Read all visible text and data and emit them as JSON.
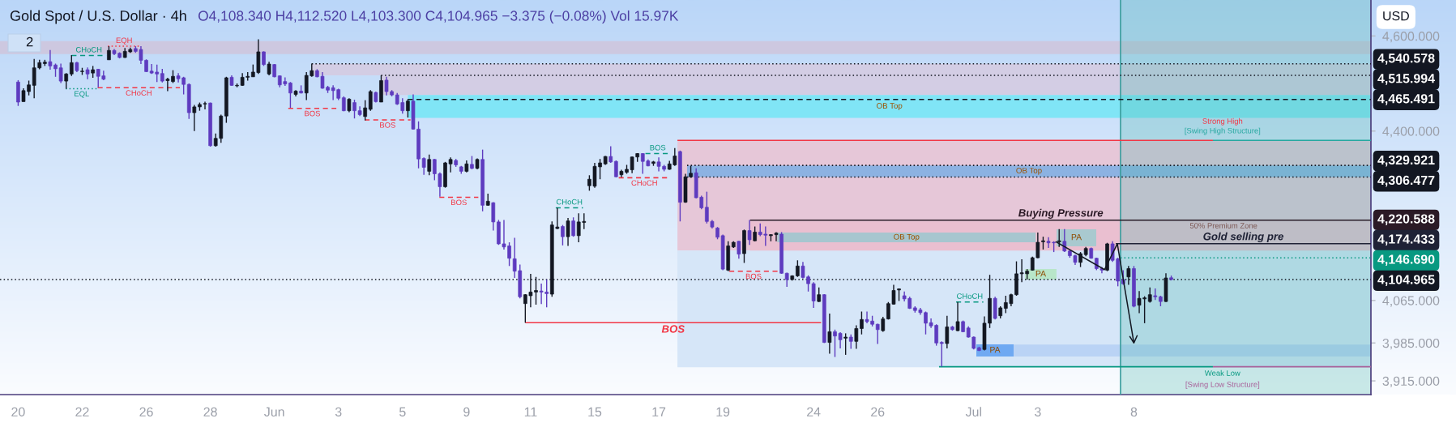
{
  "chart_data": {
    "type": "candlestick",
    "title": "Gold Spot / U.S. Dollar · 4h",
    "subtitle": "O4,108.340 H4,112.520 L4,103.300 C4,104.965 −3.375 (−0.08%) Vol 15.97K",
    "ylabel": "USD",
    "log": true,
    "ylim": [
      3890,
      4678
    ],
    "yticks": [
      {
        "value": 4600,
        "label": "4,600.000"
      },
      {
        "value": 4400,
        "label": "4,400.000"
      },
      {
        "value": 4065,
        "label": "4,065.000"
      },
      {
        "value": 3985,
        "label": "3,985.000"
      },
      {
        "value": 3915,
        "label": "3,915.000"
      }
    ],
    "categories": [
      "20",
      null,
      null,
      null,
      null,
      null,
      null,
      null,
      null,
      null,
      null,
      null,
      "22",
      null,
      null,
      null,
      null,
      null,
      null,
      null,
      null,
      null,
      null,
      null,
      "26",
      null,
      null,
      null,
      null,
      null,
      null,
      null,
      null,
      null,
      null,
      null,
      "28",
      null,
      null,
      null,
      null,
      null,
      null,
      null,
      null,
      null,
      null,
      null,
      "Jun",
      null,
      null,
      null,
      null,
      null,
      null,
      null,
      null,
      null,
      null,
      null,
      "3",
      null,
      null,
      null,
      null,
      null,
      null,
      null,
      null,
      null,
      null,
      null,
      "5",
      null,
      null,
      null,
      null,
      null,
      null,
      null,
      null,
      null,
      null,
      null,
      "9",
      null,
      null,
      null,
      null,
      null,
      null,
      null,
      null,
      null,
      null,
      null,
      "11",
      null,
      null,
      null,
      null,
      null,
      null,
      null,
      null,
      null,
      null,
      null,
      "15",
      null,
      null,
      null,
      null,
      null,
      null,
      null,
      null,
      null,
      null,
      null,
      "17",
      null,
      null,
      null,
      null,
      null,
      null,
      null,
      null,
      null,
      null,
      null,
      "19",
      null,
      null,
      null,
      null,
      null,
      null,
      null,
      null,
      null,
      null,
      null,
      null,
      null,
      null,
      null,
      null,
      "24",
      null,
      null,
      null,
      null,
      null,
      null,
      null,
      null,
      null,
      null,
      null,
      "26",
      null,
      null,
      null,
      null,
      null,
      null,
      null,
      null,
      null,
      null,
      null,
      null,
      null,
      null,
      null,
      null,
      null,
      "Jul",
      null,
      null,
      null,
      null,
      null,
      null,
      null,
      null,
      null,
      null,
      null,
      "3",
      null,
      null,
      null,
      null,
      null,
      null,
      null,
      null,
      null,
      null,
      null,
      null,
      null,
      null,
      null,
      null,
      null,
      "8",
      null,
      null,
      null,
      null,
      null,
      null,
      null,
      null,
      null,
      null,
      null,
      null,
      null,
      null,
      null,
      null,
      null,
      null,
      null,
      null,
      null,
      null,
      null,
      null,
      null,
      null,
      null,
      null,
      null,
      null,
      null,
      null,
      null,
      null,
      null,
      null,
      null,
      null,
      null,
      null,
      null,
      null,
      null,
      null
    ],
    "ohlc": [
      [
        4502,
        4506,
        4452,
        4460
      ],
      [
        4461,
        4489,
        4461,
        4484
      ],
      [
        4482,
        4505,
        4474,
        4496
      ],
      [
        4495,
        4551,
        4468,
        4532
      ],
      [
        4532,
        4549,
        4529,
        4543
      ],
      [
        4541,
        4549,
        4536,
        4544
      ],
      [
        4545,
        4570,
        4528,
        4536
      ],
      [
        4538,
        4541,
        4513,
        4530
      ],
      [
        4532,
        4541,
        4500,
        4504
      ],
      [
        4504,
        4521,
        4488,
        4519
      ],
      [
        4519,
        4559,
        4515,
        4543
      ],
      [
        4543,
        4545,
        4523,
        4526
      ],
      [
        4524,
        4532,
        4517,
        4525
      ],
      [
        4528,
        4533,
        4508,
        4519
      ],
      [
        4521,
        4536,
        4511,
        4528
      ],
      [
        4529,
        4530,
        4491,
        4514
      ],
      [
        4515,
        4526,
        4506,
        4508
      ],
      [
        4549,
        4578,
        4549,
        4569
      ],
      [
        4569,
        4572,
        4559,
        4562
      ],
      [
        4563,
        4565,
        4552,
        4554
      ],
      [
        4554,
        4574,
        4553,
        4567
      ],
      [
        4566,
        4575,
        4564,
        4571
      ],
      [
        4573,
        4578,
        4564,
        4567
      ],
      [
        4571,
        4578,
        4540,
        4548
      ],
      [
        4548,
        4550,
        4523,
        4524
      ],
      [
        4525,
        4540,
        4519,
        4521
      ],
      [
        4523,
        4539,
        4502,
        4519
      ],
      [
        4520,
        4530,
        4501,
        4504
      ],
      [
        4505,
        4511,
        4483,
        4508
      ],
      [
        4503,
        4527,
        4500,
        4514
      ],
      [
        4515,
        4521,
        4501,
        4509
      ],
      [
        4511,
        4513,
        4476,
        4497
      ],
      [
        4497,
        4499,
        4425,
        4438
      ],
      [
        4438,
        4454,
        4400,
        4450
      ],
      [
        4450,
        4459,
        4442,
        4455
      ],
      [
        4456,
        4461,
        4445,
        4457
      ],
      [
        4458,
        4459,
        4368,
        4370
      ],
      [
        4370,
        4395,
        4368,
        4385
      ],
      [
        4385,
        4434,
        4376,
        4431
      ],
      [
        4431,
        4513,
        4417,
        4511
      ],
      [
        4512,
        4516,
        4494,
        4495
      ],
      [
        4494,
        4499,
        4491,
        4495
      ],
      [
        4495,
        4521,
        4494,
        4512
      ],
      [
        4512,
        4523,
        4505,
        4514
      ],
      [
        4513,
        4539,
        4513,
        4523
      ],
      [
        4522,
        4593,
        4519,
        4566
      ],
      [
        4566,
        4567,
        4536,
        4539
      ],
      [
        4519,
        4545,
        4516,
        4540
      ],
      [
        4539,
        4540,
        4512,
        4513
      ],
      [
        4515,
        4516,
        4491,
        4496
      ],
      [
        4503,
        4512,
        4494,
        4498
      ],
      [
        4500,
        4502,
        4448,
        4479
      ],
      [
        4476,
        4485,
        4472,
        4483
      ],
      [
        4483,
        4495,
        4478,
        4479
      ],
      [
        4479,
        4523,
        4464,
        4516
      ],
      [
        4515,
        4541,
        4513,
        4526
      ],
      [
        4526,
        4529,
        4512,
        4513
      ],
      [
        4514,
        4523,
        4488,
        4489
      ],
      [
        4491,
        4494,
        4479,
        4485
      ],
      [
        4490,
        4495,
        4464,
        4484
      ],
      [
        4486,
        4488,
        4464,
        4468
      ],
      [
        4469,
        4472,
        4441,
        4442
      ],
      [
        4442,
        4468,
        4439,
        4466
      ],
      [
        4459,
        4465,
        4426,
        4442
      ],
      [
        4442,
        4451,
        4431,
        4434
      ],
      [
        4430,
        4464,
        4422,
        4448
      ],
      [
        4445,
        4485,
        4442,
        4482
      ],
      [
        4480,
        4482,
        4459,
        4461
      ],
      [
        4460,
        4516,
        4460,
        4505
      ],
      [
        4506,
        4513,
        4474,
        4482
      ],
      [
        4482,
        4485,
        4472,
        4475
      ],
      [
        4475,
        4479,
        4454,
        4456
      ],
      [
        4459,
        4468,
        4436,
        4442
      ],
      [
        4442,
        4466,
        4428,
        4462
      ],
      [
        4462,
        4476,
        4403,
        4404
      ],
      [
        4404,
        4420,
        4324,
        4343
      ],
      [
        4344,
        4346,
        4311,
        4326
      ],
      [
        4318,
        4352,
        4310,
        4342
      ],
      [
        4342,
        4343,
        4300,
        4313
      ],
      [
        4313,
        4316,
        4267,
        4287
      ],
      [
        4287,
        4337,
        4285,
        4335
      ],
      [
        4333,
        4346,
        4316,
        4342
      ],
      [
        4340,
        4343,
        4327,
        4331
      ],
      [
        4327,
        4329,
        4313,
        4318
      ],
      [
        4318,
        4340,
        4316,
        4333
      ],
      [
        4332,
        4349,
        4322,
        4324
      ],
      [
        4324,
        4344,
        4322,
        4342
      ],
      [
        4342,
        4362,
        4238,
        4250
      ],
      [
        4250,
        4273,
        4249,
        4258
      ],
      [
        4255,
        4256,
        4200,
        4217
      ],
      [
        4217,
        4221,
        4172,
        4174
      ],
      [
        4174,
        4221,
        4163,
        4168
      ],
      [
        4170,
        4177,
        4131,
        4146
      ],
      [
        4145,
        4186,
        4108,
        4121
      ],
      [
        4122,
        4134,
        4069,
        4072
      ],
      [
        4059,
        4077,
        4023,
        4076
      ],
      [
        4074,
        4116,
        4052,
        4081
      ],
      [
        4081,
        4110,
        4057,
        4084
      ],
      [
        4083,
        4097,
        4058,
        4081
      ],
      [
        4081,
        4105,
        4052,
        4078
      ],
      [
        4077,
        4218,
        4072,
        4211
      ],
      [
        4204,
        4245,
        4203,
        4207
      ],
      [
        4208,
        4211,
        4171,
        4188
      ],
      [
        4188,
        4225,
        4170,
        4219
      ],
      [
        4219,
        4226,
        4188,
        4190
      ],
      [
        4190,
        4234,
        4177,
        4217
      ],
      [
        4216,
        4234,
        4203,
        4218
      ],
      [
        4289,
        4310,
        4279,
        4302
      ],
      [
        4288,
        4335,
        4285,
        4328
      ],
      [
        4327,
        4343,
        4302,
        4335
      ],
      [
        4333,
        4349,
        4331,
        4348
      ],
      [
        4348,
        4369,
        4335,
        4337
      ],
      [
        4338,
        4340,
        4306,
        4307
      ],
      [
        4311,
        4321,
        4306,
        4318
      ],
      [
        4316,
        4331,
        4313,
        4322
      ],
      [
        4321,
        4348,
        4314,
        4347
      ],
      [
        4347,
        4355,
        4337,
        4354
      ],
      [
        4354,
        4355,
        4313,
        4338
      ],
      [
        4339,
        4342,
        4328,
        4329
      ],
      [
        4334,
        4339,
        4329,
        4337
      ],
      [
        4337,
        4346,
        4318,
        4328
      ],
      [
        4328,
        4331,
        4318,
        4322
      ],
      [
        4322,
        4339,
        4321,
        4333
      ],
      [
        4331,
        4365,
        4329,
        4349
      ],
      [
        4358,
        4360,
        4218,
        4256
      ],
      [
        4256,
        4313,
        4255,
        4307
      ],
      [
        4307,
        4329,
        4305,
        4314
      ],
      [
        4315,
        4324,
        4264,
        4265
      ],
      [
        4266,
        4269,
        4242,
        4245
      ],
      [
        4246,
        4277,
        4214,
        4218
      ],
      [
        4218,
        4221,
        4204,
        4207
      ],
      [
        4205,
        4207,
        4183,
        4187
      ],
      [
        4190,
        4192,
        4123,
        4125
      ],
      [
        4123,
        4179,
        4121,
        4170
      ],
      [
        4168,
        4179,
        4166,
        4177
      ],
      [
        4179,
        4180,
        4145,
        4154
      ],
      [
        4155,
        4202,
        4137,
        4200
      ],
      [
        4200,
        4221,
        4172,
        4182
      ],
      [
        4180,
        4208,
        4179,
        4197
      ],
      [
        4197,
        4214,
        4189,
        4192
      ],
      [
        4193,
        4208,
        4170,
        4191
      ],
      [
        4190,
        4193,
        4179,
        4192
      ],
      [
        4192,
        4197,
        4179,
        4195
      ],
      [
        4193,
        4197,
        4116,
        4117
      ],
      [
        4117,
        4118,
        4091,
        4105
      ],
      [
        4105,
        4113,
        4103,
        4112
      ],
      [
        4112,
        4142,
        4110,
        4131
      ],
      [
        4131,
        4139,
        4107,
        4109
      ],
      [
        4110,
        4113,
        4082,
        4097
      ],
      [
        4097,
        4100,
        4051,
        4064
      ],
      [
        4063,
        4090,
        4062,
        4076
      ],
      [
        4076,
        4077,
        3985,
        3986
      ],
      [
        3986,
        4040,
        3965,
        4006
      ],
      [
        4006,
        4010,
        3959,
        3998
      ],
      [
        4003,
        4005,
        3975,
        3991
      ],
      [
        3994,
        4003,
        3963,
        3996
      ],
      [
        3996,
        4001,
        3974,
        3988
      ],
      [
        3988,
        4018,
        3974,
        4012
      ],
      [
        4012,
        4044,
        4001,
        4029
      ],
      [
        4029,
        4044,
        4022,
        4025
      ],
      [
        4026,
        4036,
        4016,
        4020
      ],
      [
        4020,
        4021,
        3983,
        4010
      ],
      [
        4008,
        4034,
        4006,
        4030
      ],
      [
        4030,
        4062,
        4029,
        4059
      ],
      [
        4058,
        4095,
        4057,
        4084
      ],
      [
        4085,
        4088,
        4064,
        4087
      ],
      [
        4074,
        4082,
        4063,
        4068
      ],
      [
        4069,
        4072,
        4049,
        4050
      ],
      [
        4051,
        4054,
        4042,
        4046
      ],
      [
        4047,
        4051,
        4038,
        4042
      ],
      [
        4042,
        4044,
        4001,
        4022
      ],
      [
        4023,
        4031,
        4013,
        4017
      ],
      [
        4018,
        4020,
        3980,
        3985
      ],
      [
        3986,
        3988,
        3941,
        3984
      ],
      [
        3984,
        4036,
        3975,
        4015
      ],
      [
        4015,
        4017,
        4008,
        4010
      ],
      [
        4008,
        4062,
        4007,
        4025
      ],
      [
        4025,
        4027,
        4005,
        4006
      ],
      [
        4013,
        4016,
        3995,
        3996
      ],
      [
        3996,
        3997,
        3973,
        3975
      ],
      [
        3976,
        3978,
        3970,
        3971
      ],
      [
        3973,
        4035,
        3971,
        4022
      ],
      [
        4022,
        4114,
        4013,
        4069
      ],
      [
        4069,
        4072,
        4029,
        4031
      ],
      [
        4036,
        4054,
        4031,
        4051
      ],
      [
        4050,
        4074,
        4041,
        4061
      ],
      [
        4059,
        4078,
        4054,
        4076
      ],
      [
        4076,
        4140,
        4074,
        4116
      ],
      [
        4116,
        4144,
        4100,
        4118
      ],
      [
        4116,
        4125,
        4105,
        4121
      ],
      [
        4123,
        4149,
        4122,
        4147
      ],
      [
        4147,
        4196,
        4146,
        4177
      ],
      [
        4178,
        4188,
        4163,
        4180
      ],
      [
        4179,
        4187,
        4166,
        4176
      ],
      [
        4177,
        4179,
        4158,
        4176
      ],
      [
        4178,
        4203,
        4168,
        4180
      ],
      [
        4179,
        4203,
        4158,
        4160
      ],
      [
        4160,
        4163,
        4147,
        4151
      ],
      [
        4151,
        4153,
        4133,
        4138
      ],
      [
        4138,
        4158,
        4129,
        4155
      ],
      [
        4153,
        4168,
        4150,
        4165
      ],
      [
        4165,
        4167,
        4145,
        4146
      ],
      [
        4146,
        4147,
        4123,
        4126
      ],
      [
        4126,
        4129,
        4117,
        4123
      ],
      [
        4123,
        4176,
        4121,
        4174
      ],
      [
        4174,
        4179,
        4139,
        4142
      ],
      [
        4145,
        4147,
        4092,
        4102
      ],
      [
        4105,
        4123,
        4095,
        4097
      ],
      [
        4110,
        4131,
        4095,
        4126
      ],
      [
        4126,
        4131,
        4052,
        4054
      ],
      [
        4056,
        4083,
        4041,
        4069
      ],
      [
        4068,
        4073,
        4022,
        4070
      ],
      [
        4063,
        4090,
        4061,
        4076
      ],
      [
        4074,
        4088,
        4066,
        4072
      ],
      [
        4072,
        4074,
        4054,
        4063
      ],
      [
        4063,
        4117,
        4062,
        4108
      ],
      [
        4108.34,
        4112.52,
        4103.3,
        4104.965
      ],
      null,
      null,
      null,
      null,
      null,
      null,
      null,
      null,
      null,
      null,
      null,
      null,
      null,
      null,
      null,
      null,
      null,
      null,
      null,
      null,
      null,
      null,
      null,
      null,
      null,
      null,
      null,
      null,
      null,
      null,
      null,
      null,
      null,
      null,
      null,
      null,
      null
    ],
    "colors": [
      "#5e3bbf",
      "#131722",
      "#131722",
      "#131722",
      "#131722",
      "#131722",
      "#5e3bbf",
      "#5e3bbf",
      "#5e3bbf",
      "#131722",
      "#131722",
      "#5e3bbf",
      "#131722",
      "#5e3bbf",
      "#131722",
      "#5e3bbf",
      "#5e3bbf",
      "#131722",
      "#5e3bbf",
      "#5e3bbf",
      "#131722",
      "#131722",
      "#5e3bbf",
      "#5e3bbf",
      "#5e3bbf",
      "#5e3bbf",
      "#5e3bbf",
      "#5e3bbf",
      "#131722",
      "#131722",
      "#5e3bbf",
      "#5e3bbf",
      "#5e3bbf",
      "#131722",
      "#131722",
      "#131722",
      "#5e3bbf",
      "#131722",
      "#131722",
      "#131722",
      "#5e3bbf",
      "#131722",
      "#131722",
      "#131722",
      "#131722",
      "#131722",
      "#5e3bbf",
      "#131722",
      "#5e3bbf",
      "#5e3bbf",
      "#5e3bbf",
      "#5e3bbf",
      "#131722",
      "#5e3bbf",
      "#131722",
      "#131722",
      "#5e3bbf",
      "#5e3bbf",
      "#5e3bbf",
      "#5e3bbf",
      "#5e3bbf",
      "#5e3bbf",
      "#131722",
      "#5e3bbf",
      "#5e3bbf",
      "#131722",
      "#131722",
      "#5e3bbf",
      "#131722",
      "#5e3bbf",
      "#5e3bbf",
      "#5e3bbf",
      "#5e3bbf",
      "#131722",
      "#5e3bbf",
      "#5e3bbf",
      "#5e3bbf",
      "#131722",
      "#5e3bbf",
      "#5e3bbf",
      "#131722",
      "#131722",
      "#5e3bbf",
      "#5e3bbf",
      "#131722",
      "#5e3bbf",
      "#131722",
      "#5e3bbf",
      "#131722",
      "#5e3bbf",
      "#5e3bbf",
      "#5e3bbf",
      "#5e3bbf",
      "#5e3bbf",
      "#5e3bbf",
      "#131722",
      "#131722",
      "#131722",
      "#5e3bbf",
      "#5e3bbf",
      "#131722",
      "#131722",
      "#5e3bbf",
      "#131722",
      "#5e3bbf",
      "#131722",
      "#131722",
      "#131722",
      "#131722",
      "#131722",
      "#131722",
      "#5e3bbf",
      "#5e3bbf",
      "#131722",
      "#131722",
      "#131722",
      "#131722",
      "#5e3bbf",
      "#5e3bbf",
      "#131722",
      "#5e3bbf",
      "#5e3bbf",
      "#131722",
      "#131722",
      "#5e3bbf",
      "#131722",
      "#131722",
      "#5e3bbf",
      "#5e3bbf",
      "#5e3bbf",
      "#5e3bbf",
      "#5e3bbf",
      "#5e3bbf",
      "#131722",
      "#131722",
      "#5e3bbf",
      "#131722",
      "#5e3bbf",
      "#131722",
      "#5e3bbf",
      "#5e3bbf",
      "#131722",
      "#131722",
      "#5e3bbf",
      "#5e3bbf",
      "#131722",
      "#131722",
      "#5e3bbf",
      "#5e3bbf",
      "#5e3bbf",
      "#131722",
      "#5e3bbf",
      "#131722",
      "#5e3bbf",
      "#5e3bbf",
      "#131722",
      "#5e3bbf",
      "#131722",
      "#131722",
      "#5e3bbf",
      "#5e3bbf",
      "#5e3bbf",
      "#131722",
      "#131722",
      "#131722",
      "#131722",
      "#5e3bbf",
      "#5e3bbf",
      "#5e3bbf",
      "#5e3bbf",
      "#5e3bbf",
      "#5e3bbf",
      "#5e3bbf",
      "#5e3bbf",
      "#131722",
      "#5e3bbf",
      "#131722",
      "#5e3bbf",
      "#5e3bbf",
      "#5e3bbf",
      "#5e3bbf",
      "#131722",
      "#131722",
      "#5e3bbf",
      "#131722",
      "#131722",
      "#131722",
      "#131722",
      "#131722",
      "#131722",
      "#131722",
      "#131722",
      "#131722",
      "#5e3bbf",
      "#5e3bbf",
      "#131722",
      "#5e3bbf",
      "#5e3bbf",
      "#5e3bbf",
      "#131722",
      "#131722",
      "#5e3bbf",
      "#5e3bbf",
      "#5e3bbf",
      "#131722",
      "#5e3bbf",
      "#5e3bbf",
      "#5e3bbf",
      "#131722",
      "#5e3bbf",
      "#131722",
      "#131722",
      "#131722",
      "#5e3bbf",
      "#5e3bbf",
      "#131722",
      "#5e3bbf",
      null,
      null,
      null,
      null,
      null,
      null,
      null,
      null,
      null,
      null,
      null,
      null,
      null,
      null,
      null,
      null,
      null,
      null,
      null,
      null,
      null,
      null,
      null,
      null,
      null,
      null,
      null,
      null,
      null,
      null,
      null,
      null,
      null,
      null,
      null,
      null,
      null
    ],
    "bands": [
      {
        "axis": "y",
        "from": 4561,
        "to": 4589,
        "color": "#cdc8e0"
      },
      {
        "axis": "y",
        "from": 4515.994,
        "to": 4540.578,
        "color": "#d3cde4"
      },
      {
        "axis": "y",
        "from": 4475,
        "to": 4515.994,
        "color": "#d3cde4"
      },
      {
        "axis": "y",
        "from": 4427,
        "to": 4475,
        "color": "#80e5f6",
        "label": "OB Top"
      },
      {
        "axis": "y",
        "from": 4161,
        "to": 4381,
        "color": "#e6c7d8"
      },
      {
        "axis": "y",
        "from": 3940,
        "to": 4161,
        "color": "#d6e6f8"
      },
      {
        "axis": "y",
        "from": 4161,
        "to": 4218,
        "color": "#eabfd0",
        "label": "50% Premium Zone"
      },
      {
        "axis": "y",
        "from": 4306.477,
        "to": 4329.921,
        "color": "#8cb2e2",
        "label": "OB Top"
      },
      {
        "axis": "y",
        "from": 4177,
        "to": 4196,
        "color": "#a7c6cf",
        "label": "OB Top"
      },
      {
        "axis": "y",
        "from": 3960,
        "to": 3982,
        "color": "#bad3f5"
      }
    ],
    "ref_lines": [
      {
        "axis": "y",
        "value": 4540.578,
        "label": "4,540.578",
        "color": "#131722",
        "line_style": "dotted"
      },
      {
        "axis": "y",
        "value": 4515.994,
        "label": "4,515.994",
        "color": "#131722",
        "line_style": "dotted"
      },
      {
        "axis": "y",
        "value": 4465.491,
        "label": "4,465.491",
        "color": "#131722",
        "line_style": "dashed"
      },
      {
        "axis": "y",
        "value": 4329.921,
        "label": "4,329.921",
        "color": "#131722",
        "line_style": "dotted"
      },
      {
        "axis": "y",
        "value": 4306.477,
        "label": "4,306.477",
        "color": "#131722",
        "line_style": "dotted"
      },
      {
        "axis": "y",
        "value": 4220.588,
        "label": "4,220.588",
        "color": "#2b1a26",
        "line_style": "solid"
      },
      {
        "axis": "y",
        "value": 4174.433,
        "label": "4,174.433",
        "color": "#1f2236",
        "line_style": "solid"
      },
      {
        "axis": "y",
        "value": 4146.69,
        "label": "4,146.690",
        "color": "#089981",
        "line_style": "dotted"
      },
      {
        "axis": "y",
        "value": 4104.965,
        "label": "4,104.965",
        "color": "#131722",
        "line_style": "dotted"
      },
      {
        "axis": "y",
        "value": 4558,
        "label": "CHoCH",
        "color": "#089981",
        "line_style": "dashed"
      },
      {
        "axis": "y",
        "value": 4578,
        "label": "EQH",
        "color": "#f23645",
        "line_style": "dotted"
      },
      {
        "axis": "y",
        "value": 4488,
        "label": "EQL",
        "color": "#089981",
        "line_style": "dotted"
      },
      {
        "axis": "y",
        "value": 4490,
        "label": "CHoCH",
        "color": "#f23645",
        "line_style": "dashed"
      },
      {
        "axis": "y",
        "value": 4447,
        "label": "BOS",
        "color": "#f23645",
        "line_style": "dashed"
      },
      {
        "axis": "y",
        "value": 4423,
        "label": "BOS",
        "color": "#f23645",
        "line_style": "dashed"
      },
      {
        "axis": "y",
        "value": 4266,
        "label": "BOS",
        "color": "#f23645",
        "line_style": "dashed"
      },
      {
        "axis": "y",
        "value": 4245,
        "label": "CHoCH",
        "color": "#089981",
        "line_style": "dashed"
      },
      {
        "axis": "y",
        "value": 4305,
        "label": "CHoCH",
        "color": "#f23645",
        "line_style": "dashed"
      },
      {
        "axis": "y",
        "value": 4354,
        "label": "BOS",
        "color": "#089981",
        "line_style": "dashed"
      },
      {
        "axis": "y",
        "value": 4023,
        "label": "BOS",
        "color": "#f23645",
        "line_style": "solid"
      },
      {
        "axis": "y",
        "value": 4121,
        "label": "BOS",
        "color": "#f23645",
        "line_style": "dashed"
      },
      {
        "axis": "y",
        "value": 4062,
        "label": "CHoCH",
        "color": "#089981",
        "line_style": "dashed"
      },
      {
        "axis": "y",
        "value": 4381,
        "label": "Strong High",
        "color": "#f23645",
        "line_style": "solid"
      },
      {
        "axis": "y",
        "value": 4381,
        "label": "[Swing High Structure]",
        "color": "#26a8a0",
        "line_style": "solid"
      },
      {
        "axis": "y",
        "value": 3941,
        "label": "Weak Low",
        "color": "#089981",
        "line_style": "solid"
      },
      {
        "axis": "y",
        "value": 3941,
        "label": "[Swing Low Structure]",
        "color": "#a8619a",
        "line_style": "solid"
      }
    ],
    "annotations": [
      "2",
      "PA",
      "PA",
      {
        "text": "Buying Pressure",
        "y": 4220.588
      },
      {
        "text": "Gold selling pre",
        "y": 4174.433
      },
      {
        "text": "PA",
        "y": 4115
      }
    ]
  }
}
